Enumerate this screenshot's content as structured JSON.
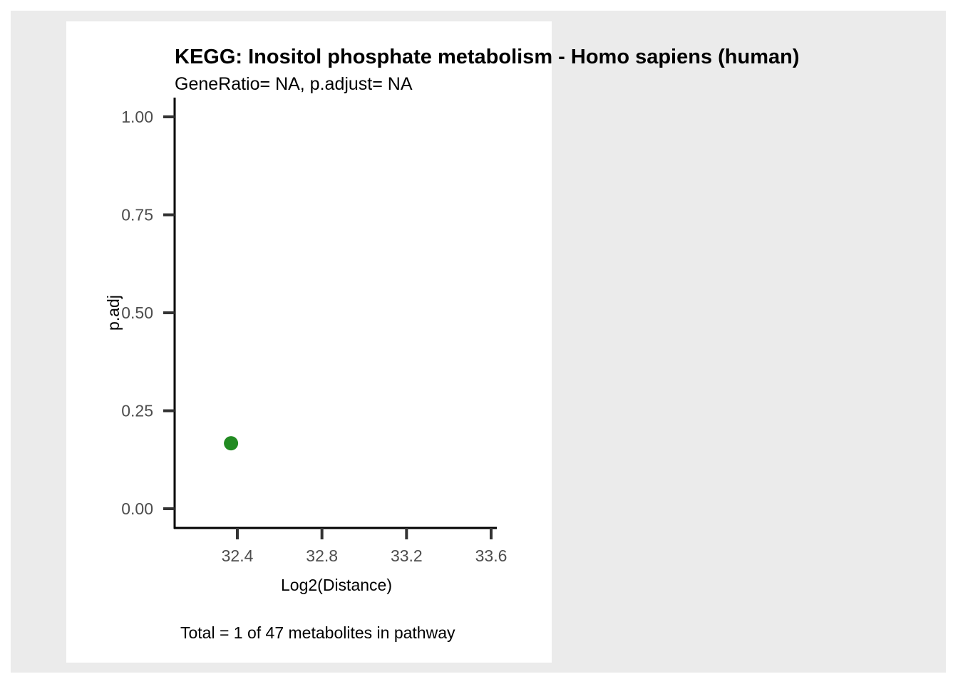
{
  "chart_data": {
    "type": "scatter",
    "title": "KEGG: Inositol phosphate metabolism - Homo sapiens (human)",
    "subtitle": "GeneRatio= NA, p.adjust= NA",
    "xlabel": "Log2(Distance)",
    "ylabel": "p.adj",
    "caption": "Total = 1 of 47 metabolites in pathway",
    "x_ticks": [
      "32.4",
      "32.8",
      "33.2",
      "33.6"
    ],
    "y_ticks": [
      "0.00",
      "0.25",
      "0.50",
      "0.75",
      "1.00"
    ],
    "xlim": [
      32.1,
      33.63
    ],
    "ylim": [
      0,
      1
    ],
    "points": [
      {
        "x": 32.37,
        "y": 0.167,
        "color": "#228b22"
      }
    ],
    "grid": false
  }
}
